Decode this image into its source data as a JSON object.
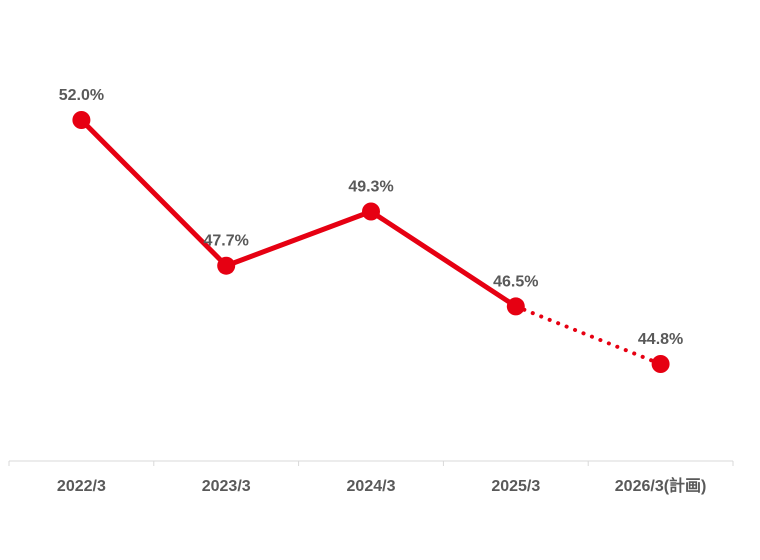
{
  "chart_data": {
    "type": "line",
    "categories": [
      "2022/3",
      "2023/3",
      "2024/3",
      "2025/3",
      "2026/3(計画)"
    ],
    "series": [
      {
        "values": [
          52.0,
          47.7,
          49.3,
          46.5,
          44.8
        ],
        "data_labels": [
          "52.0%",
          "47.7%",
          "49.3%",
          "46.5%",
          "44.8%"
        ],
        "color": "#e60012",
        "forecast_from_index": 3
      }
    ],
    "title": "",
    "xlabel": "",
    "ylabel": "",
    "ylim": [
      38,
      54
    ],
    "grid": false,
    "legend": "none"
  }
}
